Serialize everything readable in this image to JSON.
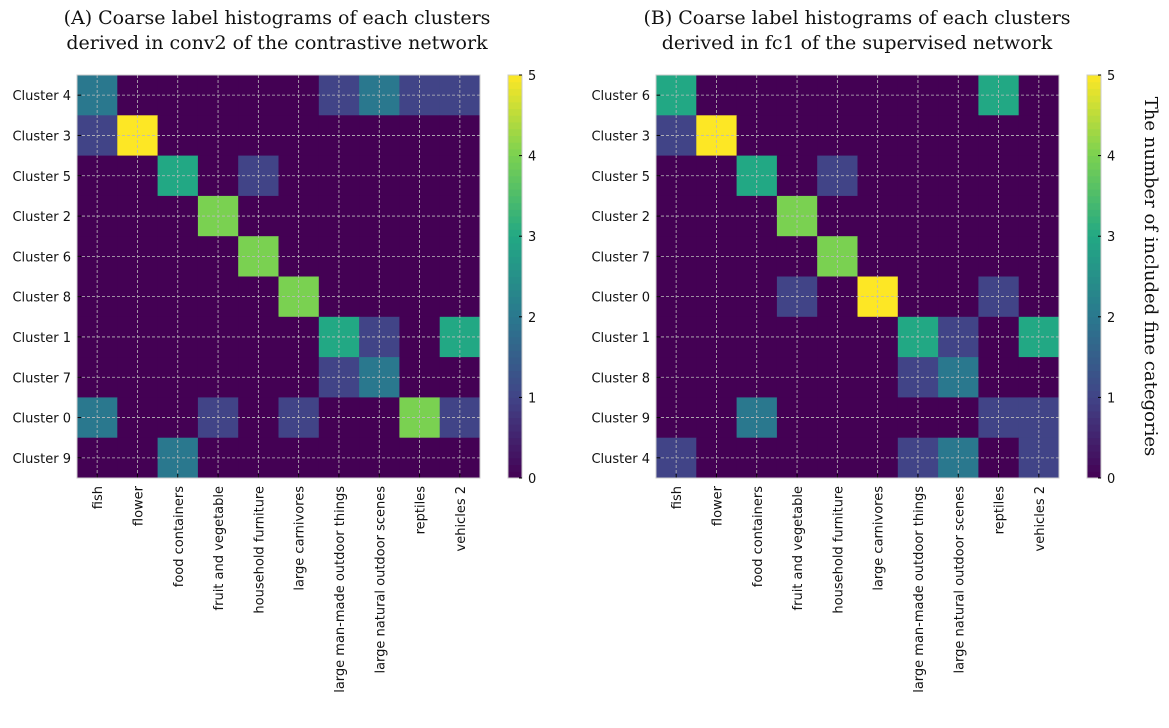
{
  "chart_data": [
    {
      "type": "heatmap",
      "title": [
        "(A) Coarse label histograms of each clusters",
        "derived in conv2 of the contrastive network"
      ],
      "rows": [
        "Cluster 4",
        "Cluster 3",
        "Cluster 5",
        "Cluster 2",
        "Cluster 6",
        "Cluster 8",
        "Cluster 1",
        "Cluster 7",
        "Cluster 0",
        "Cluster 9"
      ],
      "columns": [
        "fish",
        "flower",
        "food containers",
        "fruit and vegetable",
        "household furniture",
        "large carnivores",
        "large man-made outdoor things",
        "large natural outdoor scenes",
        "reptiles",
        "vehicles 2"
      ],
      "values": [
        [
          2,
          0,
          0,
          0,
          0,
          0,
          1,
          2,
          1,
          1
        ],
        [
          1,
          5,
          0,
          0,
          0,
          0,
          0,
          0,
          0,
          0
        ],
        [
          0,
          0,
          3,
          0,
          1,
          0,
          0,
          0,
          0,
          0
        ],
        [
          0,
          0,
          0,
          4,
          0,
          0,
          0,
          0,
          0,
          0
        ],
        [
          0,
          0,
          0,
          0,
          4,
          0,
          0,
          0,
          0,
          0
        ],
        [
          0,
          0,
          0,
          0,
          0,
          4,
          0,
          0,
          0,
          0
        ],
        [
          0,
          0,
          0,
          0,
          0,
          0,
          3,
          1,
          0,
          3
        ],
        [
          0,
          0,
          0,
          0,
          0,
          0,
          1,
          2,
          0,
          0
        ],
        [
          2,
          0,
          0,
          1,
          0,
          1,
          0,
          0,
          4,
          1
        ],
        [
          0,
          0,
          2,
          0,
          0,
          0,
          0,
          0,
          0,
          0
        ]
      ],
      "colorbar": {
        "range": [
          0,
          5
        ],
        "ticks": [
          "0",
          "1",
          "2",
          "3",
          "4",
          "5"
        ],
        "label": ""
      },
      "colormap": "viridis",
      "grid": true
    },
    {
      "type": "heatmap",
      "title": [
        "(B) Coarse label histograms of each clusters",
        "derived in fc1 of the supervised network"
      ],
      "rows": [
        "Cluster 6",
        "Cluster 3",
        "Cluster 5",
        "Cluster 2",
        "Cluster 7",
        "Cluster 0",
        "Cluster 1",
        "Cluster 8",
        "Cluster 9",
        "Cluster 4"
      ],
      "columns": [
        "fish",
        "flower",
        "food containers",
        "fruit and vegetable",
        "household furniture",
        "large carnivores",
        "large man-made outdoor things",
        "large natural outdoor scenes",
        "reptiles",
        "vehicles 2"
      ],
      "values": [
        [
          3,
          0,
          0,
          0,
          0,
          0,
          0,
          0,
          3,
          0
        ],
        [
          1,
          5,
          0,
          0,
          0,
          0,
          0,
          0,
          0,
          0
        ],
        [
          0,
          0,
          3,
          0,
          1,
          0,
          0,
          0,
          0,
          0
        ],
        [
          0,
          0,
          0,
          4,
          0,
          0,
          0,
          0,
          0,
          0
        ],
        [
          0,
          0,
          0,
          0,
          4,
          0,
          0,
          0,
          0,
          0
        ],
        [
          0,
          0,
          0,
          1,
          0,
          5,
          0,
          0,
          1,
          0
        ],
        [
          0,
          0,
          0,
          0,
          0,
          0,
          3,
          1,
          0,
          3
        ],
        [
          0,
          0,
          0,
          0,
          0,
          0,
          1,
          2,
          0,
          0
        ],
        [
          0,
          0,
          2,
          0,
          0,
          0,
          0,
          0,
          1,
          1
        ],
        [
          1,
          0,
          0,
          0,
          0,
          0,
          1,
          2,
          0,
          1
        ]
      ],
      "colorbar": {
        "range": [
          0,
          5
        ],
        "ticks": [
          "0",
          "1",
          "2",
          "3",
          "4",
          "5"
        ],
        "label": "The number of included fine categories"
      },
      "colormap": "viridis",
      "grid": true
    }
  ]
}
